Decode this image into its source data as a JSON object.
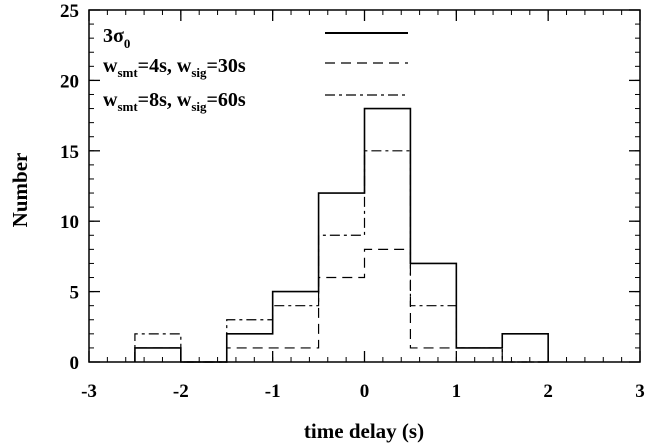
{
  "chart_data": {
    "type": "histogram",
    "xlabel": "time delay (s)",
    "ylabel": "Number",
    "xlim": [
      -3,
      3
    ],
    "ylim": [
      0,
      25
    ],
    "xticks": [
      "-3",
      "-2",
      "-1",
      "0",
      "1",
      "2",
      "3"
    ],
    "yticks": [
      "0",
      "5",
      "10",
      "15",
      "20",
      "25"
    ],
    "bin_edges": [
      -2.5,
      -2.0,
      -1.5,
      -1.0,
      -0.5,
      0.0,
      0.5,
      1.0,
      1.5,
      2.0
    ],
    "series": [
      {
        "name": "3σ0",
        "linestyle": "solid",
        "values": [
          1,
          0,
          2,
          5,
          12,
          18,
          7,
          1,
          2
        ]
      },
      {
        "name": "wsmt=4s, wsig=30s",
        "linestyle": "dashed",
        "values": [
          1,
          0,
          1,
          1,
          6,
          8,
          1,
          1,
          0
        ]
      },
      {
        "name": "wsmt=8s, wsig=60s",
        "linestyle": "dashdot",
        "values": [
          2,
          0,
          3,
          4,
          9,
          15,
          4,
          1,
          0
        ]
      }
    ],
    "legend": {
      "placement": "top-left",
      "entries": [
        {
          "main": "3σ",
          "sub": "0"
        },
        {
          "w1": "w",
          "s1": "smt",
          "t1": "=4s, ",
          "w2": "w",
          "s2": "sig",
          "t2": "=30s"
        },
        {
          "w1": "w",
          "s1": "smt",
          "t1": "=8s, ",
          "w2": "w",
          "s2": "sig",
          "t2": "=60s"
        }
      ]
    },
    "grid": false
  }
}
